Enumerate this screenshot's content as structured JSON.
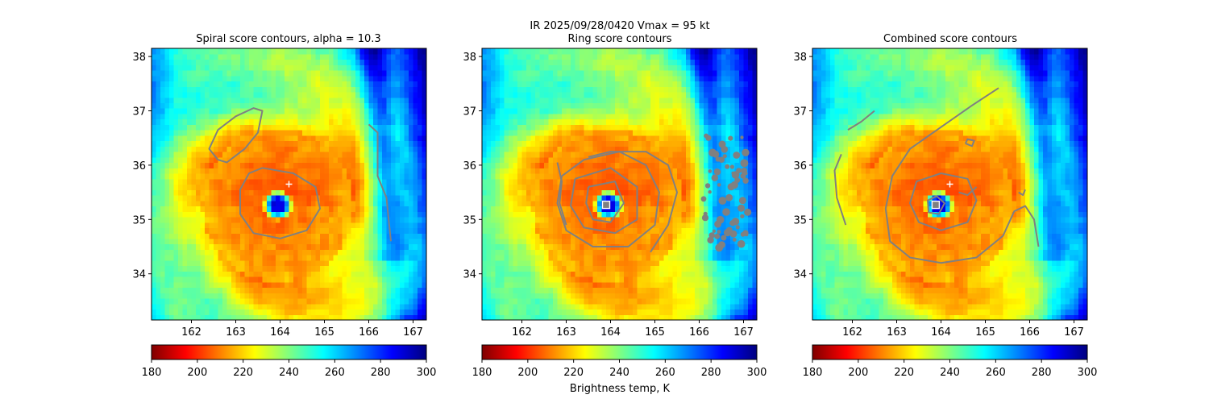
{
  "suptitle": "IR  2025/09/28/0420    Vmax = 95 kt",
  "colorbar_label": "Brightness temp, K",
  "colormap": [
    "#7f0000",
    "#ff0000",
    "#ff8000",
    "#ffff00",
    "#80ff80",
    "#00ffff",
    "#0080ff",
    "#0000ff",
    "#00007f"
  ],
  "colors": {
    "contour": "#808080",
    "cross": "#ffffff",
    "square_edge": "#ffffff",
    "square_fill": "#808080"
  },
  "chart_data": [
    {
      "type": "heatmap",
      "title": "Spiral score contours, alpha = 10.3",
      "xlabel": "",
      "ylabel": "",
      "xlim": [
        161.1,
        167.3
      ],
      "ylim": [
        33.15,
        38.15
      ],
      "xticks": [
        162,
        163,
        164,
        165,
        166,
        167
      ],
      "yticks": [
        34,
        35,
        36,
        37,
        38
      ],
      "colorbar": {
        "ticks": [
          180,
          200,
          220,
          240,
          260,
          280,
          300
        ],
        "range": [
          180,
          300
        ]
      },
      "eye_center": [
        163.95,
        35.27
      ],
      "eye_temp_min": 290,
      "markers": [
        {
          "kind": "plus",
          "lon": 164.2,
          "lat": 35.65
        }
      ],
      "contours": [
        [
          [
            163.6,
            35.95
          ],
          [
            164.3,
            35.85
          ],
          [
            164.8,
            35.6
          ],
          [
            164.9,
            35.2
          ],
          [
            164.6,
            34.8
          ],
          [
            164.0,
            34.65
          ],
          [
            163.4,
            34.75
          ],
          [
            163.1,
            35.1
          ],
          [
            163.1,
            35.55
          ],
          [
            163.3,
            35.85
          ],
          [
            163.6,
            35.95
          ]
        ],
        [
          [
            162.6,
            36.1
          ],
          [
            162.4,
            36.3
          ],
          [
            162.6,
            36.65
          ],
          [
            163.0,
            36.9
          ],
          [
            163.4,
            37.05
          ],
          [
            163.6,
            37.0
          ],
          [
            163.5,
            36.6
          ],
          [
            163.2,
            36.3
          ],
          [
            162.8,
            36.05
          ],
          [
            162.6,
            36.1
          ]
        ],
        [
          [
            166.0,
            36.75
          ],
          [
            166.2,
            36.6
          ],
          [
            166.2,
            36.2
          ],
          [
            166.2,
            35.8
          ],
          [
            166.4,
            35.4
          ],
          [
            166.45,
            35.0
          ],
          [
            166.5,
            34.6
          ]
        ]
      ]
    },
    {
      "type": "heatmap",
      "title": "Ring score contours",
      "xlabel": "",
      "ylabel": "",
      "xlim": [
        161.1,
        167.3
      ],
      "ylim": [
        33.15,
        38.15
      ],
      "xticks": [
        162,
        163,
        164,
        165,
        166,
        167
      ],
      "yticks": [
        34,
        35,
        36,
        37,
        38
      ],
      "colorbar": {
        "ticks": [
          180,
          200,
          220,
          240,
          260,
          280,
          300
        ],
        "range": [
          180,
          300
        ]
      },
      "eye_center": [
        163.95,
        35.27
      ],
      "eye_temp_min": 290,
      "markers": [
        {
          "kind": "square",
          "lon": 163.9,
          "lat": 35.27
        }
      ],
      "contours": [
        [
          [
            163.5,
            35.6
          ],
          [
            164.1,
            35.7
          ],
          [
            164.3,
            35.3
          ],
          [
            164.0,
            34.95
          ],
          [
            163.6,
            35.0
          ],
          [
            163.45,
            35.3
          ],
          [
            163.5,
            35.6
          ]
        ],
        [
          [
            163.2,
            35.75
          ],
          [
            164.0,
            35.95
          ],
          [
            164.6,
            35.6
          ],
          [
            164.6,
            35.0
          ],
          [
            164.1,
            34.75
          ],
          [
            163.4,
            34.85
          ],
          [
            163.1,
            35.25
          ],
          [
            163.2,
            35.75
          ]
        ],
        [
          [
            162.9,
            35.8
          ],
          [
            163.4,
            36.1
          ],
          [
            164.2,
            36.25
          ],
          [
            164.8,
            36.0
          ],
          [
            165.1,
            35.5
          ],
          [
            165.0,
            34.9
          ],
          [
            164.4,
            34.5
          ],
          [
            163.6,
            34.5
          ],
          [
            163.0,
            34.8
          ],
          [
            162.8,
            35.3
          ],
          [
            162.9,
            35.8
          ]
        ],
        [
          [
            163.5,
            36.15
          ],
          [
            164.0,
            36.25
          ],
          [
            164.8,
            36.25
          ],
          [
            165.3,
            36.0
          ],
          [
            165.5,
            35.5
          ],
          [
            165.3,
            34.9
          ],
          [
            164.9,
            34.4
          ]
        ],
        [
          [
            162.8,
            36.05
          ],
          [
            162.9,
            35.7
          ],
          [
            162.85,
            35.3
          ],
          [
            163.0,
            34.9
          ]
        ]
      ],
      "patches": [
        {
          "lon": [
            166.1,
            167.1
          ],
          "lat": [
            34.3,
            36.55
          ]
        }
      ]
    },
    {
      "type": "heatmap",
      "title": "Combined score contours",
      "xlabel": "",
      "ylabel": "",
      "xlim": [
        161.1,
        167.3
      ],
      "ylim": [
        33.15,
        38.15
      ],
      "xticks": [
        162,
        163,
        164,
        165,
        166,
        167
      ],
      "yticks": [
        34,
        35,
        36,
        37,
        38
      ],
      "colorbar": {
        "ticks": [
          180,
          200,
          220,
          240,
          260,
          280,
          300
        ],
        "range": [
          180,
          300
        ]
      },
      "eye_center": [
        163.95,
        35.27
      ],
      "eye_temp_min": 290,
      "markers": [
        {
          "kind": "plus",
          "lon": 164.2,
          "lat": 35.65
        },
        {
          "kind": "square",
          "lon": 163.88,
          "lat": 35.27
        }
      ],
      "contours": [
        [
          [
            163.9,
            35.43
          ],
          [
            164.08,
            35.3
          ],
          [
            163.95,
            35.1
          ],
          [
            163.72,
            35.13
          ],
          [
            163.7,
            35.35
          ],
          [
            163.9,
            35.43
          ]
        ],
        [
          [
            164.0,
            35.85
          ],
          [
            164.6,
            35.75
          ],
          [
            164.8,
            35.35
          ],
          [
            164.6,
            34.95
          ],
          [
            164.0,
            34.8
          ],
          [
            163.5,
            34.95
          ],
          [
            163.3,
            35.3
          ],
          [
            163.45,
            35.7
          ],
          [
            164.0,
            35.85
          ]
        ],
        [
          [
            165.3,
            37.42
          ],
          [
            164.7,
            37.1
          ],
          [
            164.0,
            36.7
          ],
          [
            163.3,
            36.3
          ],
          [
            162.9,
            35.8
          ],
          [
            162.75,
            35.2
          ],
          [
            162.85,
            34.6
          ],
          [
            163.3,
            34.3
          ],
          [
            164.0,
            34.2
          ],
          [
            164.8,
            34.3
          ],
          [
            165.4,
            34.7
          ],
          [
            165.65,
            35.15
          ],
          [
            165.9,
            35.25
          ],
          [
            166.1,
            35.0
          ],
          [
            166.2,
            34.5
          ]
        ],
        [
          [
            161.75,
            36.2
          ],
          [
            161.6,
            35.9
          ],
          [
            161.65,
            35.4
          ],
          [
            161.85,
            34.9
          ]
        ],
        [
          [
            161.9,
            36.65
          ],
          [
            162.2,
            36.8
          ],
          [
            162.5,
            37.0
          ]
        ],
        [
          [
            164.4,
            35.5
          ],
          [
            164.6,
            35.45
          ],
          [
            164.8,
            35.6
          ]
        ],
        [
          [
            164.55,
            36.4
          ],
          [
            164.7,
            36.35
          ],
          [
            164.75,
            36.45
          ],
          [
            164.6,
            36.48
          ],
          [
            164.55,
            36.4
          ]
        ],
        [
          [
            165.75,
            35.5
          ],
          [
            165.85,
            35.45
          ],
          [
            165.9,
            35.55
          ]
        ]
      ]
    }
  ]
}
